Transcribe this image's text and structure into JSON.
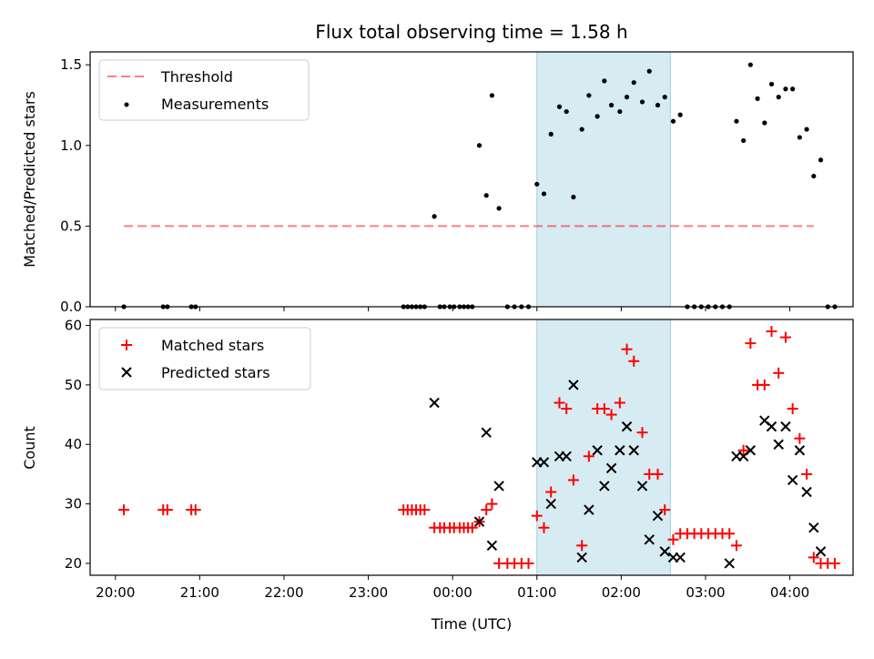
{
  "figure": {
    "title": "Flux total observing time = 1.58 h"
  },
  "chart_data": [
    {
      "type": "scatter",
      "ylabel": "Matched/Predicted stars",
      "ylim": [
        0,
        1.58
      ],
      "yticks": [
        "0.0",
        "0.5",
        "1.0",
        "1.5"
      ],
      "xlim": [
        "19:42",
        "04:45"
      ],
      "highlight_span": [
        "01:00",
        "02:35"
      ],
      "threshold": {
        "name": "Threshold",
        "y": 0.5,
        "x_from": "20:06",
        "x_to": "04:17"
      },
      "legend": {
        "position": "top-left",
        "entries": [
          "Threshold",
          "Measurements"
        ]
      },
      "series": [
        {
          "name": "Measurements",
          "points": [
            [
              "20:06",
              0
            ],
            [
              "20:34",
              0
            ],
            [
              "20:37",
              0
            ],
            [
              "20:54",
              0
            ],
            [
              "20:57",
              0
            ],
            [
              "23:25",
              0
            ],
            [
              "23:28",
              0
            ],
            [
              "23:31",
              0
            ],
            [
              "23:34",
              0
            ],
            [
              "23:37",
              0
            ],
            [
              "23:40",
              0
            ],
            [
              "23:47",
              0.56
            ],
            [
              "23:51",
              0
            ],
            [
              "23:54",
              0
            ],
            [
              "23:58",
              0
            ],
            [
              "00:01",
              0
            ],
            [
              "00:05",
              0
            ],
            [
              "00:08",
              0
            ],
            [
              "00:11",
              0
            ],
            [
              "00:14",
              0
            ],
            [
              "00:19",
              1.0
            ],
            [
              "00:24",
              0.69
            ],
            [
              "00:28",
              1.31
            ],
            [
              "00:33",
              0.61
            ],
            [
              "00:39",
              0
            ],
            [
              "00:44",
              0
            ],
            [
              "00:49",
              0
            ],
            [
              "00:54",
              0
            ],
            [
              "01:00",
              0.76
            ],
            [
              "01:05",
              0.7
            ],
            [
              "01:10",
              1.07
            ],
            [
              "01:16",
              1.24
            ],
            [
              "01:21",
              1.21
            ],
            [
              "01:26",
              0.68
            ],
            [
              "01:32",
              1.1
            ],
            [
              "01:37",
              1.31
            ],
            [
              "01:43",
              1.18
            ],
            [
              "01:48",
              1.4
            ],
            [
              "01:53",
              1.25
            ],
            [
              "01:59",
              1.21
            ],
            [
              "02:04",
              1.3
            ],
            [
              "02:09",
              1.39
            ],
            [
              "02:15",
              1.27
            ],
            [
              "02:20",
              1.46
            ],
            [
              "02:26",
              1.25
            ],
            [
              "02:31",
              1.3
            ],
            [
              "02:37",
              1.15
            ],
            [
              "02:42",
              1.19
            ],
            [
              "02:47",
              0
            ],
            [
              "02:52",
              0
            ],
            [
              "02:57",
              0
            ],
            [
              "03:02",
              0
            ],
            [
              "03:07",
              0
            ],
            [
              "03:12",
              0
            ],
            [
              "03:17",
              0
            ],
            [
              "03:22",
              1.15
            ],
            [
              "03:27",
              1.03
            ],
            [
              "03:32",
              1.5
            ],
            [
              "03:37",
              1.29
            ],
            [
              "03:42",
              1.14
            ],
            [
              "03:47",
              1.38
            ],
            [
              "03:52",
              1.3
            ],
            [
              "03:57",
              1.35
            ],
            [
              "04:02",
              1.35
            ],
            [
              "04:07",
              1.05
            ],
            [
              "04:12",
              1.1
            ],
            [
              "04:17",
              0.81
            ],
            [
              "04:22",
              0.91
            ],
            [
              "04:27",
              0
            ],
            [
              "04:32",
              0
            ]
          ]
        }
      ]
    },
    {
      "type": "scatter",
      "xlabel": "Time (UTC)",
      "ylabel": "Count",
      "ylim": [
        18,
        61
      ],
      "yticks": [
        "20",
        "30",
        "40",
        "50",
        "60"
      ],
      "xlim": [
        "19:42",
        "04:45"
      ],
      "xticks": [
        "20:00",
        "21:00",
        "22:00",
        "23:00",
        "00:00",
        "01:00",
        "02:00",
        "03:00",
        "04:00"
      ],
      "highlight_span": [
        "01:00",
        "02:35"
      ],
      "legend": {
        "position": "top-left",
        "entries": [
          "Matched stars",
          "Predicted stars"
        ]
      },
      "series": [
        {
          "name": "Matched stars",
          "color": "#ff0000",
          "marker": "plus",
          "points": [
            [
              "20:06",
              29
            ],
            [
              "20:34",
              29
            ],
            [
              "20:37",
              29
            ],
            [
              "20:54",
              29
            ],
            [
              "20:57",
              29
            ],
            [
              "23:25",
              29
            ],
            [
              "23:28",
              29
            ],
            [
              "23:31",
              29
            ],
            [
              "23:34",
              29
            ],
            [
              "23:37",
              29
            ],
            [
              "23:40",
              29
            ],
            [
              "23:47",
              26
            ],
            [
              "23:51",
              26
            ],
            [
              "23:54",
              26
            ],
            [
              "23:58",
              26
            ],
            [
              "00:01",
              26
            ],
            [
              "00:05",
              26
            ],
            [
              "00:08",
              26
            ],
            [
              "00:11",
              26
            ],
            [
              "00:14",
              26
            ],
            [
              "00:19",
              27
            ],
            [
              "00:24",
              29
            ],
            [
              "00:28",
              30
            ],
            [
              "00:33",
              20
            ],
            [
              "00:39",
              20
            ],
            [
              "00:44",
              20
            ],
            [
              "00:49",
              20
            ],
            [
              "00:54",
              20
            ],
            [
              "01:00",
              28
            ],
            [
              "01:05",
              26
            ],
            [
              "01:10",
              32
            ],
            [
              "01:16",
              47
            ],
            [
              "01:21",
              46
            ],
            [
              "01:26",
              34
            ],
            [
              "01:32",
              23
            ],
            [
              "01:37",
              38
            ],
            [
              "01:43",
              46
            ],
            [
              "01:48",
              46
            ],
            [
              "01:53",
              45
            ],
            [
              "01:59",
              47
            ],
            [
              "02:04",
              56
            ],
            [
              "02:09",
              54
            ],
            [
              "02:15",
              42
            ],
            [
              "02:20",
              35
            ],
            [
              "02:26",
              35
            ],
            [
              "02:31",
              29
            ],
            [
              "02:37",
              24
            ],
            [
              "02:42",
              25
            ],
            [
              "02:47",
              25
            ],
            [
              "02:52",
              25
            ],
            [
              "02:57",
              25
            ],
            [
              "03:02",
              25
            ],
            [
              "03:07",
              25
            ],
            [
              "03:12",
              25
            ],
            [
              "03:17",
              25
            ],
            [
              "03:22",
              23
            ],
            [
              "03:27",
              39
            ],
            [
              "03:32",
              57
            ],
            [
              "03:37",
              50
            ],
            [
              "03:42",
              50
            ],
            [
              "03:47",
              59
            ],
            [
              "03:52",
              52
            ],
            [
              "03:57",
              58
            ],
            [
              "04:02",
              46
            ],
            [
              "04:07",
              41
            ],
            [
              "04:12",
              35
            ],
            [
              "04:17",
              21
            ],
            [
              "04:22",
              20
            ],
            [
              "04:27",
              20
            ],
            [
              "04:32",
              20
            ]
          ]
        },
        {
          "name": "Predicted stars",
          "color": "#000000",
          "marker": "x",
          "points": [
            [
              "23:47",
              47
            ],
            [
              "00:19",
              27
            ],
            [
              "00:24",
              42
            ],
            [
              "00:28",
              23
            ],
            [
              "00:33",
              33
            ],
            [
              "01:00",
              37
            ],
            [
              "01:05",
              37
            ],
            [
              "01:10",
              30
            ],
            [
              "01:16",
              38
            ],
            [
              "01:21",
              38
            ],
            [
              "01:26",
              50
            ],
            [
              "01:32",
              21
            ],
            [
              "01:37",
              29
            ],
            [
              "01:43",
              39
            ],
            [
              "01:48",
              33
            ],
            [
              "01:53",
              36
            ],
            [
              "01:59",
              39
            ],
            [
              "02:04",
              43
            ],
            [
              "02:09",
              39
            ],
            [
              "02:15",
              33
            ],
            [
              "02:20",
              24
            ],
            [
              "02:26",
              28
            ],
            [
              "02:31",
              22
            ],
            [
              "02:37",
              21
            ],
            [
              "02:42",
              21
            ],
            [
              "03:17",
              20
            ],
            [
              "03:22",
              38
            ],
            [
              "03:27",
              38
            ],
            [
              "03:32",
              39
            ],
            [
              "03:42",
              44
            ],
            [
              "03:47",
              43
            ],
            [
              "03:52",
              40
            ],
            [
              "03:57",
              43
            ],
            [
              "04:02",
              34
            ],
            [
              "04:07",
              39
            ],
            [
              "04:12",
              32
            ],
            [
              "04:17",
              26
            ],
            [
              "04:22",
              22
            ]
          ]
        }
      ]
    }
  ]
}
